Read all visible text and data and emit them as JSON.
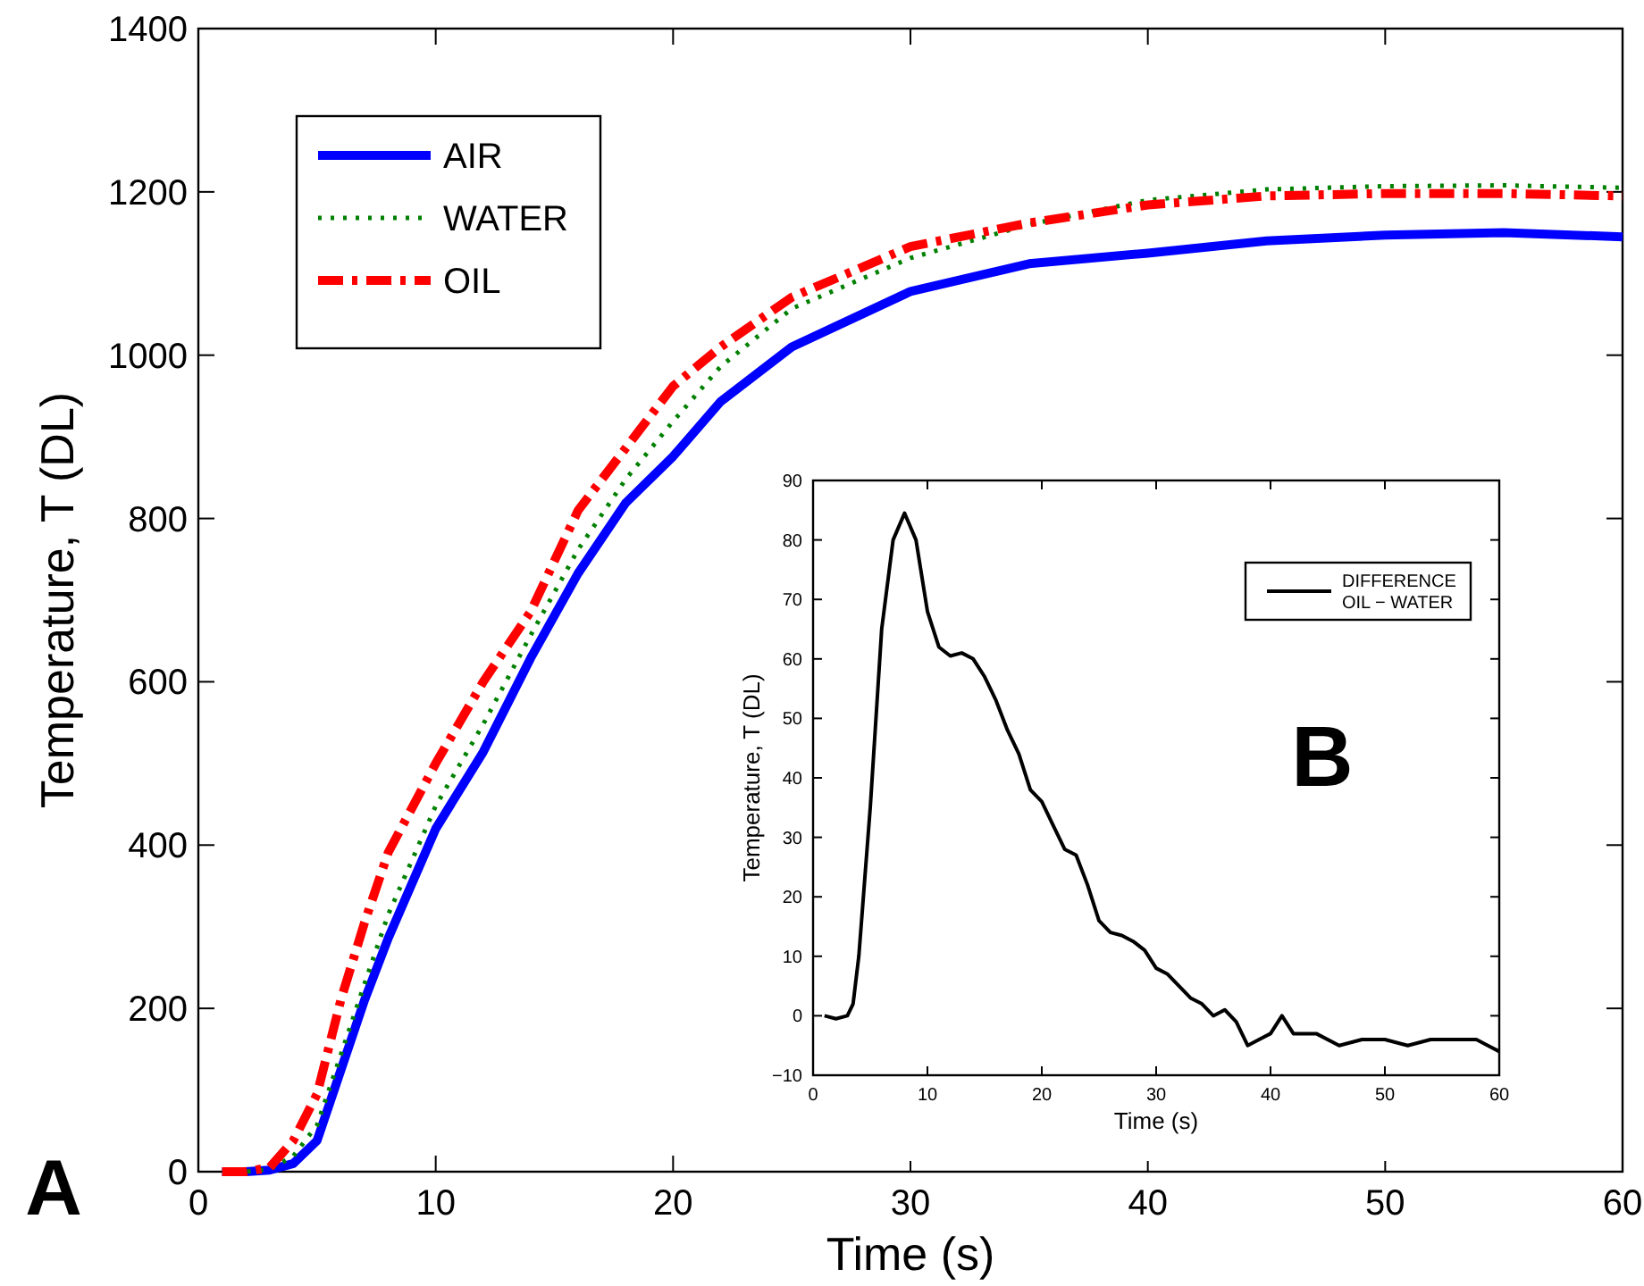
{
  "chart_data": [
    {
      "type": "line",
      "xlabel": "Time (s)",
      "ylabel": "Temperature, T (DL)",
      "xlim": [
        0,
        60
      ],
      "ylim": [
        0,
        1400
      ],
      "xticks": [
        0,
        10,
        20,
        30,
        40,
        50,
        60
      ],
      "yticks": [
        0,
        200,
        400,
        600,
        800,
        1000,
        1200,
        1400
      ],
      "legend": "top left",
      "grid": false,
      "annotations": [
        "A"
      ],
      "x": [
        1,
        2,
        3,
        4,
        5,
        6,
        7,
        8,
        10,
        12,
        14,
        16,
        18,
        20,
        22,
        25,
        30,
        35,
        40,
        45,
        50,
        55,
        60
      ],
      "series": [
        {
          "name": "AIR",
          "color": "#0000ff",
          "line_style": "solid",
          "values": [
            0,
            0,
            2,
            10,
            38,
            124,
            210,
            286,
            420,
            514,
            629,
            733,
            819,
            876,
            943,
            1010,
            1078,
            1112,
            1125,
            1140,
            1147,
            1150,
            1145
          ]
        },
        {
          "name": "WATER",
          "color": "#008000",
          "line_style": "dotted",
          "values": [
            0,
            0,
            3,
            19,
            57,
            143,
            230,
            315,
            448,
            548,
            657,
            762,
            848,
            919,
            986,
            1057,
            1119,
            1160,
            1190,
            1203,
            1207,
            1208,
            1205
          ]
        },
        {
          "name": "OIL",
          "color": "#ff0000",
          "line_style": "dashed",
          "values": [
            0,
            0,
            5,
            38,
            95,
            210,
            305,
            391,
            500,
            600,
            686,
            810,
            886,
            962,
            1010,
            1071,
            1133,
            1162,
            1184,
            1195,
            1198,
            1198,
            1195
          ]
        }
      ]
    },
    {
      "type": "line",
      "xlabel": "Time (s)",
      "ylabel": "Temperature, T (DL)",
      "xlim": [
        0,
        60
      ],
      "ylim": [
        -10,
        90
      ],
      "xticks": [
        0,
        10,
        20,
        30,
        40,
        50,
        60
      ],
      "yticks": [
        -10,
        0,
        10,
        20,
        30,
        40,
        50,
        60,
        70,
        80,
        90
      ],
      "legend": "top right",
      "grid": false,
      "annotations": [
        "B"
      ],
      "x": [
        1,
        2,
        3,
        3.5,
        4,
        5,
        6,
        7,
        8,
        9,
        10,
        11,
        12,
        13,
        14,
        15,
        16,
        17,
        18,
        19,
        20,
        21,
        22,
        23,
        24,
        25,
        26,
        27,
        28,
        29,
        30,
        31,
        32,
        33,
        34,
        35,
        36,
        37,
        38,
        39,
        40,
        41,
        42,
        44,
        46,
        48,
        50,
        52,
        54,
        56,
        58,
        59,
        60
      ],
      "series": [
        {
          "name": "DIFFERENCE\nOIL − WATER",
          "color": "#000000",
          "line_style": "solid",
          "values": [
            0,
            -0.5,
            0,
            2,
            10,
            35,
            65,
            80,
            84.5,
            80,
            68,
            62,
            60.5,
            61,
            60,
            57,
            53,
            48,
            44,
            38,
            36,
            32,
            28,
            27,
            22,
            16,
            14,
            13.5,
            12.5,
            11,
            8,
            7,
            5,
            3,
            2,
            0,
            1,
            -1,
            -5,
            -4,
            -3,
            0,
            -3,
            -3,
            -5,
            -4,
            -4,
            -5,
            -4,
            -4,
            -4,
            -5,
            -6
          ]
        }
      ]
    }
  ]
}
